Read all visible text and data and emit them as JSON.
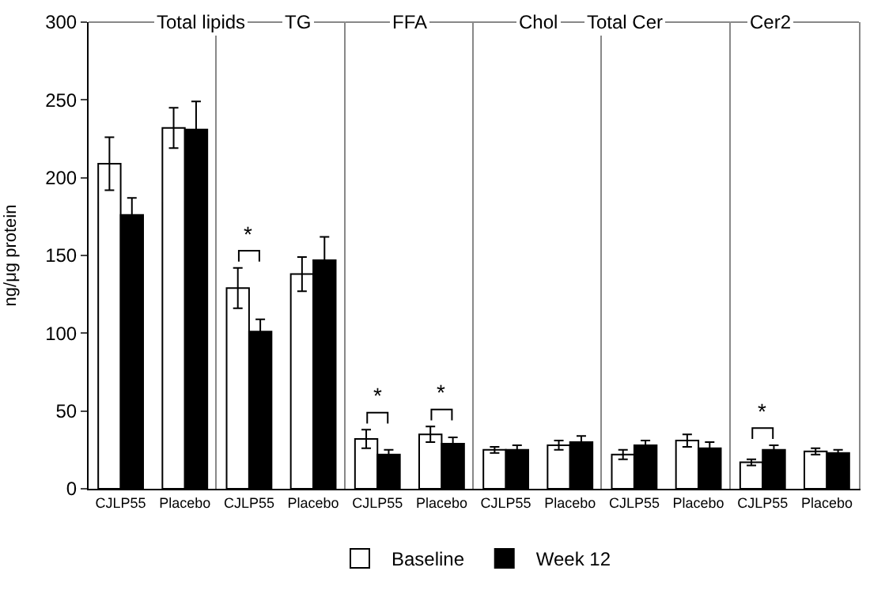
{
  "chart_data": [
    {
      "type": "bar",
      "title": "Total lipids",
      "categories": [
        "CJLP55",
        "Placebo"
      ],
      "ylabel": "ng/μg protein",
      "ylim": [
        0,
        300
      ],
      "yticks": [
        0,
        50,
        100,
        150,
        200,
        250,
        300
      ],
      "legend": "bottom",
      "series": [
        {
          "name": "Baseline",
          "color": "#ffffff",
          "values": [
            209,
            232
          ],
          "errors": [
            17,
            13
          ]
        },
        {
          "name": "Week 12",
          "color": "#000000",
          "values": [
            176,
            231
          ],
          "errors": [
            11,
            18
          ]
        }
      ]
    },
    {
      "type": "bar",
      "title": "TG",
      "categories": [
        "CJLP55",
        "Placebo"
      ],
      "ylim": [
        0,
        300
      ],
      "tick_labels": "x",
      "annotations": [
        {
          "text": "*",
          "x": "CJLP55",
          "y": 129
        }
      ],
      "series": [
        {
          "color": "#ffffff",
          "values": [
            129,
            138
          ],
          "errors": [
            13,
            11
          ]
        },
        {
          "color": "#000000",
          "values": [
            101,
            147
          ],
          "errors": [
            8,
            15
          ]
        }
      ]
    },
    {
      "type": "bar",
      "title": "FFA",
      "categories": [
        "CJLP55",
        "Placebo"
      ],
      "ylim": [
        0,
        300
      ],
      "tick_labels": "x",
      "annotations": [
        {
          "text": "*",
          "x": "CJLP55",
          "y": 32
        },
        {
          "text": "*",
          "x": "Placebo",
          "y": 35
        }
      ],
      "series": [
        {
          "color": "#ffffff",
          "values": [
            32,
            35
          ],
          "errors": [
            6,
            5
          ]
        },
        {
          "color": "#000000",
          "values": [
            22,
            29
          ],
          "errors": [
            3,
            4
          ]
        }
      ]
    },
    {
      "type": "bar",
      "title": "Chol",
      "categories": [
        "CJLP55",
        "Placebo"
      ],
      "ylim": [
        0,
        300
      ],
      "tick_labels": "x",
      "series": [
        {
          "color": "#ffffff",
          "values": [
            25,
            28
          ],
          "errors": [
            2,
            3
          ]
        },
        {
          "color": "#000000",
          "values": [
            25,
            30
          ],
          "errors": [
            3,
            4
          ]
        }
      ]
    },
    {
      "type": "bar",
      "title": "Total Cer",
      "categories": [
        "CJLP55",
        "Placebo"
      ],
      "ylim": [
        0,
        300
      ],
      "tick_labels": "x",
      "series": [
        {
          "color": "#ffffff",
          "values": [
            22,
            31
          ],
          "errors": [
            3,
            4
          ]
        },
        {
          "color": "#000000",
          "values": [
            28,
            26
          ],
          "errors": [
            3,
            4
          ]
        }
      ]
    },
    {
      "type": "bar",
      "title": "Cer2",
      "categories": [
        "CJLP55",
        "Placebo"
      ],
      "ylim": [
        0,
        300
      ],
      "tick_labels": "x",
      "annotations": [
        {
          "text": "*",
          "x": "CJLP55",
          "y": 17
        }
      ],
      "series": [
        {
          "color": "#ffffff",
          "values": [
            17,
            24
          ],
          "errors": [
            2,
            2
          ]
        },
        {
          "color": "#000000",
          "values": [
            25,
            23
          ],
          "errors": [
            3,
            2
          ]
        }
      ]
    }
  ]
}
